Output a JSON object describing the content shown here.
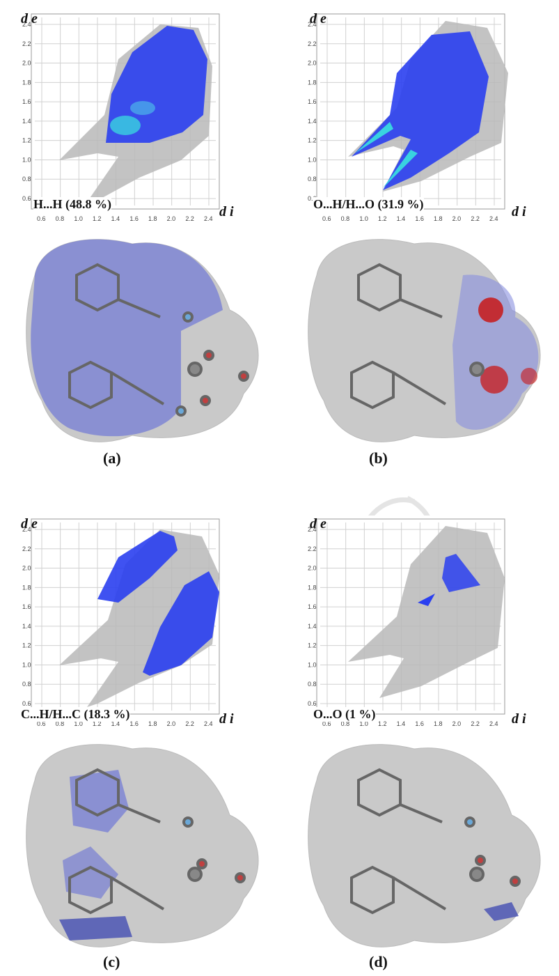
{
  "axes": {
    "y_symbol": "d e",
    "x_symbol": "d i",
    "ticks": [
      "0.6",
      "0.8",
      "1.0",
      "1.2",
      "1.4",
      "1.6",
      "1.8",
      "2.0",
      "2.2",
      "2.4"
    ]
  },
  "colors": {
    "points_dense": "#2a3ff0",
    "points_hot": "#39d3e0",
    "background_cloud": "#b5b5b5",
    "surface": "#c9c9c9",
    "contact_blue": "#5560d8",
    "contact_red": "#c81818",
    "grid": "#d0d0d0"
  },
  "panels": [
    {
      "id": "a",
      "contact": "H...H  (48.8 %)",
      "caption": "(a)"
    },
    {
      "id": "b",
      "contact": "O...H/H...O  (31.9 %)",
      "caption": "(b)"
    },
    {
      "id": "c",
      "contact": "C...H/H...C  (18.3 %)",
      "caption": "(c)"
    },
    {
      "id": "d",
      "contact": "O...O (1 %)",
      "caption": "(d)"
    }
  ],
  "icons": {
    "molecule": "molecule-icon"
  }
}
